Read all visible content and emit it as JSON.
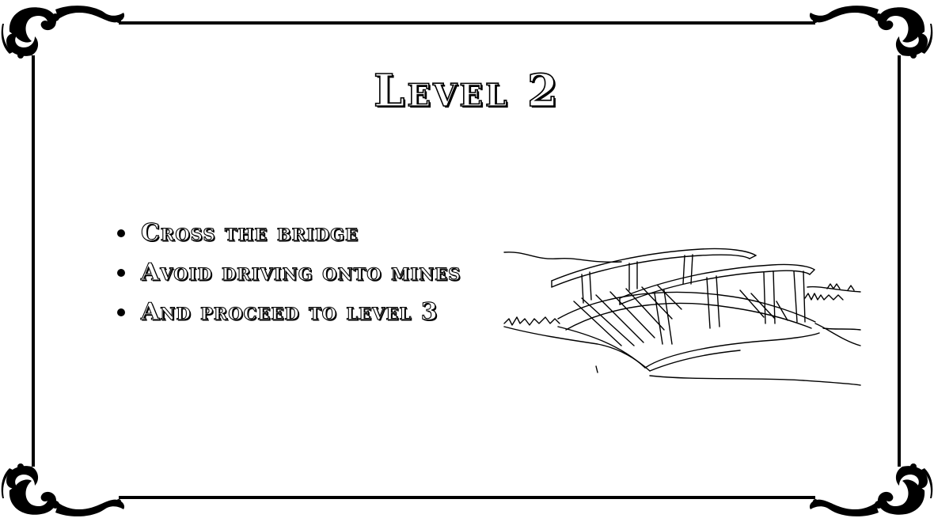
{
  "slide": {
    "title": "Level 2",
    "bullets": [
      {
        "text": "Cross the bridge"
      },
      {
        "text": "Avoid driving onto mines"
      },
      {
        "text": "And proceed to level 3"
      }
    ]
  },
  "decor": {
    "frame_color": "#000000",
    "corner_ornament": "ornate-scroll-corner",
    "illustration": "wooden-arched-bridge-line-drawing"
  }
}
